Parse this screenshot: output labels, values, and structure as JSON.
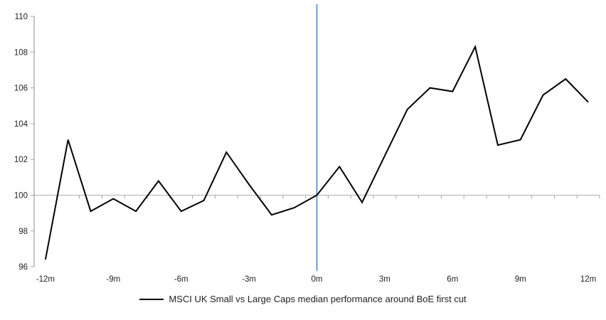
{
  "chart_data": {
    "type": "line",
    "title": "",
    "xlabel": "",
    "ylabel": "",
    "x": [
      -12,
      -11,
      -10,
      -9,
      -8,
      -7,
      -6,
      -5,
      -4,
      -3,
      -2,
      -1,
      0,
      1,
      2,
      3,
      4,
      5,
      6,
      7,
      8,
      9,
      10,
      11,
      12
    ],
    "series": [
      {
        "name": "MSCI UK Small vs Large Caps median performance around BoE first cut",
        "values": [
          96.4,
          103.1,
          99.1,
          99.8,
          99.1,
          100.8,
          99.1,
          99.7,
          102.4,
          100.6,
          98.9,
          99.3,
          100.0,
          101.6,
          99.6,
          102.2,
          104.8,
          106.0,
          105.8,
          108.3,
          102.8,
          103.1,
          105.6,
          106.5,
          105.2
        ]
      }
    ],
    "ylim": [
      96,
      110
    ],
    "y_ticks": [
      96,
      98,
      100,
      102,
      104,
      106,
      108,
      110
    ],
    "x_tick_months": [
      -12,
      -9,
      -6,
      -3,
      0,
      3,
      6,
      9,
      12
    ],
    "x_tick_labels": [
      "-12m",
      "-9m",
      "-6m",
      "-3m",
      "0m",
      "3m",
      "6m",
      "9m",
      "12m"
    ],
    "x_axis_cross_value": 100,
    "event_line_month": 0,
    "grid": false,
    "legend_position": "bottom"
  },
  "colors": {
    "series_line": "#000000",
    "event_line": "#4a86c8",
    "y_axis": "#a6a6a6",
    "x_axis": "#bdbdbd",
    "tick": "#a6a6a6",
    "label_text": "#1f1f1f"
  }
}
